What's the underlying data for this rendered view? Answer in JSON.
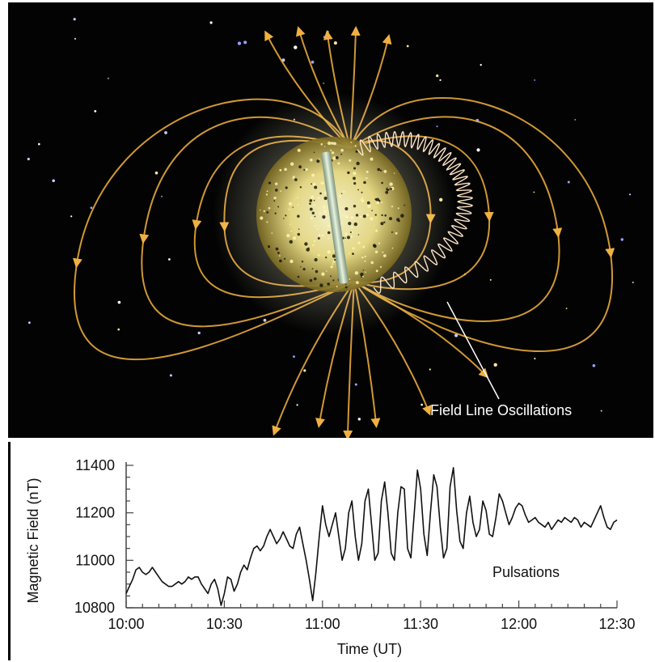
{
  "diagram": {
    "annotation": "Field Line Oscillations",
    "colors": {
      "background": "#030303",
      "field_lines": "#e8a93a",
      "planet_glow": "#ffef9a",
      "oscillation_wave": "#ffe6c8",
      "magnet_bar": "#cfe0c8",
      "annotation_text": "#ffffff"
    }
  },
  "chart_data": {
    "type": "line",
    "xlabel": "Time (UT)",
    "ylabel": "Magnetic Field (nT)",
    "annotation": "Pulsations",
    "x_ticks": [
      "10:00",
      "10:30",
      "11:00",
      "11:30",
      "12:00",
      "12:30"
    ],
    "x_tick_minutes": [
      0,
      30,
      60,
      90,
      120,
      150
    ],
    "y_ticks": [
      10800,
      11000,
      11200,
      11400
    ],
    "xlim_minutes": [
      0,
      150
    ],
    "ylim": [
      10800,
      11400
    ],
    "grid": false,
    "series": [
      {
        "x_minutes": [
          0,
          1,
          2,
          3,
          4,
          5,
          6,
          7,
          8,
          9,
          10,
          11,
          12,
          13,
          14,
          15,
          16,
          17,
          18,
          19,
          20,
          21,
          22,
          23,
          24,
          25,
          26,
          27,
          28,
          29,
          30,
          31,
          32,
          33,
          34,
          35,
          36,
          37,
          38,
          39,
          40,
          41,
          42,
          43,
          44,
          45,
          46,
          47,
          48,
          49,
          50,
          51,
          52,
          53,
          54,
          55,
          56,
          57,
          58,
          59,
          60,
          61,
          62,
          63,
          64,
          65,
          66,
          67,
          68,
          69,
          70,
          71,
          72,
          73,
          74,
          75,
          76,
          77,
          78,
          79,
          80,
          81,
          82,
          83,
          84,
          85,
          86,
          87,
          88,
          89,
          90,
          91,
          92,
          93,
          94,
          95,
          96,
          97,
          98,
          99,
          100,
          101,
          102,
          103,
          104,
          105,
          106,
          107,
          108,
          109,
          110,
          111,
          112,
          113,
          114,
          115,
          116,
          117,
          118,
          119,
          120,
          121,
          122,
          123,
          124,
          125,
          126,
          127,
          128,
          129,
          130,
          131,
          132,
          133,
          134,
          135,
          136,
          137,
          138,
          139,
          140,
          141,
          142,
          143,
          144,
          145,
          146,
          147,
          148,
          149,
          150
        ],
        "values": [
          10860,
          10890,
          10920,
          10960,
          10970,
          10950,
          10940,
          10950,
          10970,
          10950,
          10930,
          10910,
          10900,
          10890,
          10890,
          10900,
          10910,
          10900,
          10910,
          10930,
          10920,
          10930,
          10930,
          10900,
          10880,
          10860,
          10900,
          10920,
          10880,
          10810,
          10860,
          10930,
          10920,
          10870,
          10900,
          10950,
          10980,
          10960,
          11010,
          11050,
          11060,
          11040,
          11060,
          11100,
          11130,
          11100,
          11070,
          11090,
          11120,
          11090,
          11060,
          11050,
          11110,
          11140,
          11070,
          11000,
          10920,
          10830,
          10950,
          11100,
          11230,
          11150,
          11100,
          11150,
          11200,
          11100,
          11000,
          11050,
          11200,
          11250,
          11100,
          11000,
          11070,
          11250,
          11300,
          11150,
          11000,
          11030,
          11250,
          11330,
          11200,
          11030,
          11000,
          11200,
          11310,
          11300,
          11050,
          11010,
          11190,
          11380,
          11300,
          11110,
          11020,
          11200,
          11360,
          11310,
          11140,
          11010,
          11050,
          11310,
          11390,
          11210,
          11080,
          11050,
          11200,
          11270,
          11160,
          11100,
          11130,
          11250,
          11210,
          11110,
          11100,
          11180,
          11280,
          11250,
          11200,
          11150,
          11180,
          11220,
          11240,
          11230,
          11190,
          11160,
          11170,
          11180,
          11160,
          11150,
          11140,
          11160,
          11130,
          11150,
          11170,
          11160,
          11180,
          11170,
          11160,
          11180,
          11170,
          11140,
          11160,
          11150,
          11140,
          11170,
          11200,
          11230,
          11180,
          11140,
          11130,
          11160,
          11170
        ]
      }
    ]
  }
}
